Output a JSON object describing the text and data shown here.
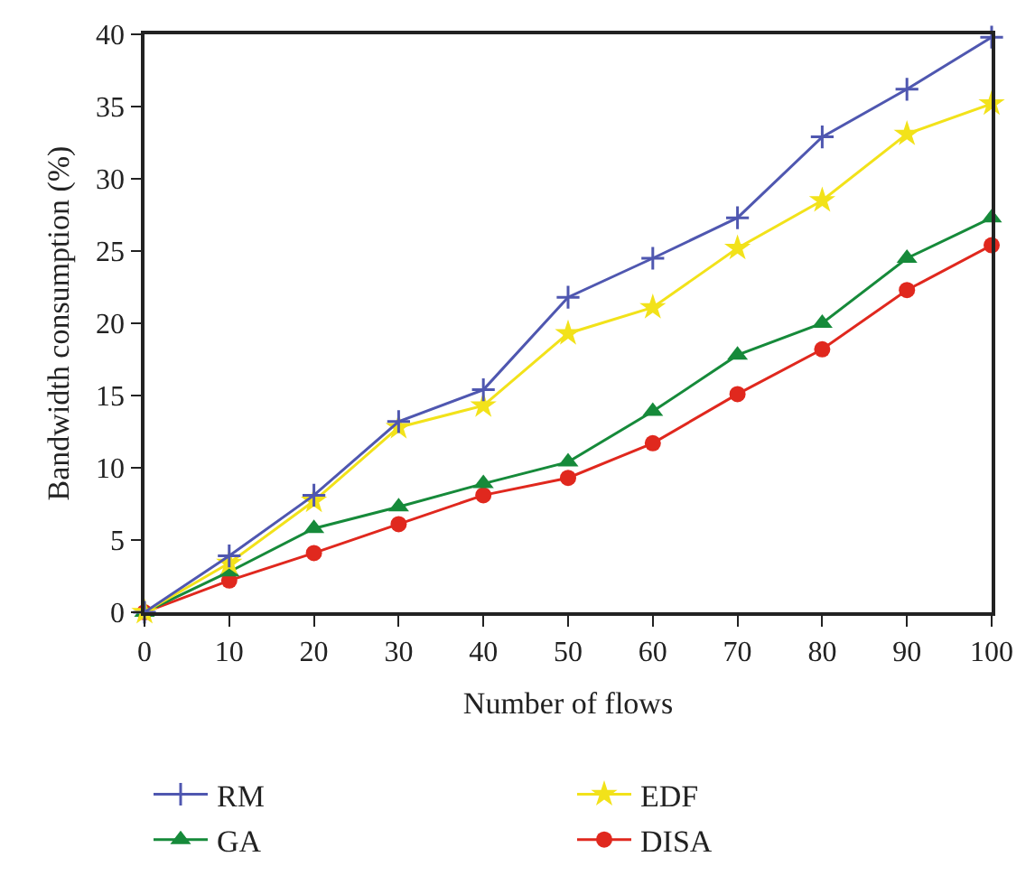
{
  "chart_data": {
    "type": "line",
    "xlabel": "Number of flows",
    "ylabel": "Bandwidth consumption (%)",
    "x": [
      0,
      10,
      20,
      30,
      40,
      50,
      60,
      70,
      80,
      90,
      100
    ],
    "series": [
      {
        "name": "RM",
        "color": "#4f57b0",
        "marker": "cross",
        "values": [
          0,
          3.9,
          8.1,
          13.2,
          15.4,
          21.8,
          24.5,
          27.3,
          32.9,
          36.2,
          39.8
        ]
      },
      {
        "name": "EDF",
        "color": "#f2e21a",
        "marker": "star",
        "values": [
          0,
          3.4,
          7.7,
          12.8,
          14.3,
          19.3,
          21.1,
          25.2,
          28.5,
          33.1,
          35.2
        ]
      },
      {
        "name": "GA",
        "color": "#168a3a",
        "marker": "triangle",
        "values": [
          0,
          2.8,
          5.8,
          7.3,
          8.9,
          10.4,
          13.9,
          17.8,
          20.0,
          24.5,
          27.3
        ]
      },
      {
        "name": "DISA",
        "color": "#e0281e",
        "marker": "circle",
        "values": [
          0,
          2.2,
          4.1,
          6.1,
          8.1,
          9.3,
          11.7,
          15.1,
          18.2,
          22.3,
          25.4
        ]
      }
    ],
    "xlim": [
      0,
      100
    ],
    "xticks": [
      0,
      10,
      20,
      30,
      40,
      50,
      60,
      70,
      80,
      90,
      100
    ],
    "ylim": [
      0,
      40
    ],
    "yticks": [
      0,
      5,
      10,
      15,
      20,
      25,
      30,
      35,
      40
    ],
    "grid": false,
    "legend": "bottom"
  }
}
